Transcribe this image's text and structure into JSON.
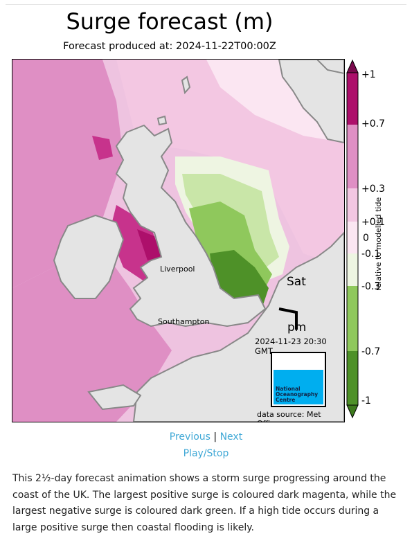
{
  "header": {
    "title": "Surge forecast (m)",
    "subtitle": "Forecast produced at: 2024-11-22T00:00Z"
  },
  "map": {
    "cities": [
      "Liverpool",
      "Southampton"
    ],
    "day": "Sat",
    "period": "pm",
    "timestamp": "2024-11-23 20:30 GMT",
    "source": "data source: Met Office",
    "logo_text": [
      "National",
      "Oceanography",
      "Centre"
    ]
  },
  "legend": {
    "axis_label": "relative to modelled tide",
    "ticks": [
      "+1",
      "+0.7",
      "+0.3",
      "+0.1",
      "0",
      "-0.1",
      "-0.3",
      "-0.7",
      "-1"
    ],
    "colors": {
      "dark_magenta": "#ad0f6b",
      "magenta": "#c7338c",
      "pink": "#df8fc4",
      "light_pink": "#f3c7e2",
      "pale_pink": "#fbe6f2",
      "pale_green": "#eef5e2",
      "light_green": "#c9e6a8",
      "green": "#8fc85c",
      "dark_green": "#4e9128",
      "land": "#e4e4e4"
    }
  },
  "nav": {
    "previous": "Previous",
    "separator": "|",
    "next": "Next",
    "play_stop": "Play/Stop"
  },
  "description": "This 2½-day forecast animation shows a storm surge progressing around the coast of the UK. The largest positive surge is coloured dark magenta, while the largest negative surge is coloured dark green. If a high tide occurs during a large positive surge then coastal flooding is likely."
}
